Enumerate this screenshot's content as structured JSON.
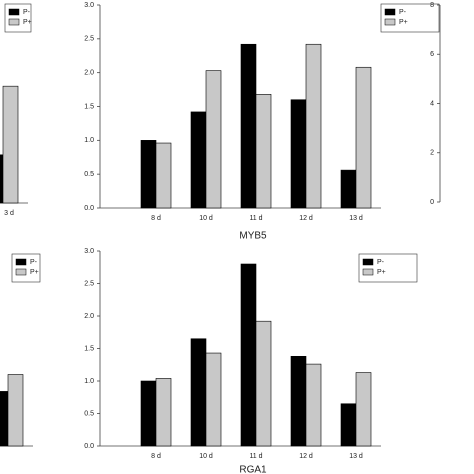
{
  "chart_data": [
    {
      "type": "bar",
      "categories": [
        "3 d"
      ],
      "ylim": [
        0,
        3
      ],
      "series": [
        {
          "name": "P-",
          "color": "#000000",
          "values": [
            0.73
          ]
        },
        {
          "name": "P+",
          "color": "#c8c8c8",
          "values": [
            1.77
          ]
        }
      ]
    },
    {
      "type": "bar",
      "title": "MYB5",
      "categories": [
        "8 d",
        "10 d",
        "11 d",
        "12 d",
        "13 d"
      ],
      "ylim": [
        0,
        3
      ],
      "yticks": [
        {
          "value": 0,
          "label": "0.0"
        },
        {
          "value": 0.5,
          "label": "0.5"
        },
        {
          "value": 1,
          "label": "1.0"
        },
        {
          "value": 1.5,
          "label": "1.5"
        },
        {
          "value": 2,
          "label": "2.0"
        },
        {
          "value": 2.5,
          "label": "2.5"
        },
        {
          "value": 3,
          "label": "3.0"
        }
      ],
      "series": [
        {
          "name": "P-",
          "color": "#000000",
          "values": [
            1.0,
            1.42,
            2.42,
            1.6,
            0.56
          ]
        },
        {
          "name": "P+",
          "color": "#c8c8c8",
          "values": [
            0.96,
            2.03,
            1.68,
            2.42,
            2.08
          ]
        }
      ]
    },
    {
      "type": "bar",
      "ylim": [
        0,
        8
      ],
      "yticks": [
        0,
        2,
        4,
        6,
        8
      ]
    },
    {
      "type": "bar",
      "categories": [
        null
      ],
      "ylim": [
        0,
        3
      ],
      "series": [
        {
          "name": "P-",
          "color": "#000000",
          "values": [
            0.84
          ]
        },
        {
          "name": "P+",
          "color": "#c8c8c8",
          "values": [
            1.1
          ]
        }
      ]
    },
    {
      "type": "bar",
      "title": "RGA1",
      "categories": [
        "8 d",
        "10 d",
        "11 d",
        "12 d",
        "13 d"
      ],
      "ylim": [
        0,
        3
      ],
      "yticks": [
        {
          "value": 0,
          "label": "0.0"
        },
        {
          "value": 0.5,
          "label": "0.5"
        },
        {
          "value": 1,
          "label": "1.0"
        },
        {
          "value": 1.5,
          "label": "1.5"
        },
        {
          "value": 2,
          "label": "2.0"
        },
        {
          "value": 2.5,
          "label": "2.5"
        },
        {
          "value": 3,
          "label": "3.0"
        }
      ],
      "series": [
        {
          "name": "P-",
          "color": "#000000",
          "values": [
            1.0,
            1.65,
            2.8,
            1.38,
            0.65
          ]
        },
        {
          "name": "P+",
          "color": "#c8c8c8",
          "values": [
            1.04,
            1.43,
            1.92,
            1.26,
            1.13
          ]
        }
      ]
    }
  ]
}
